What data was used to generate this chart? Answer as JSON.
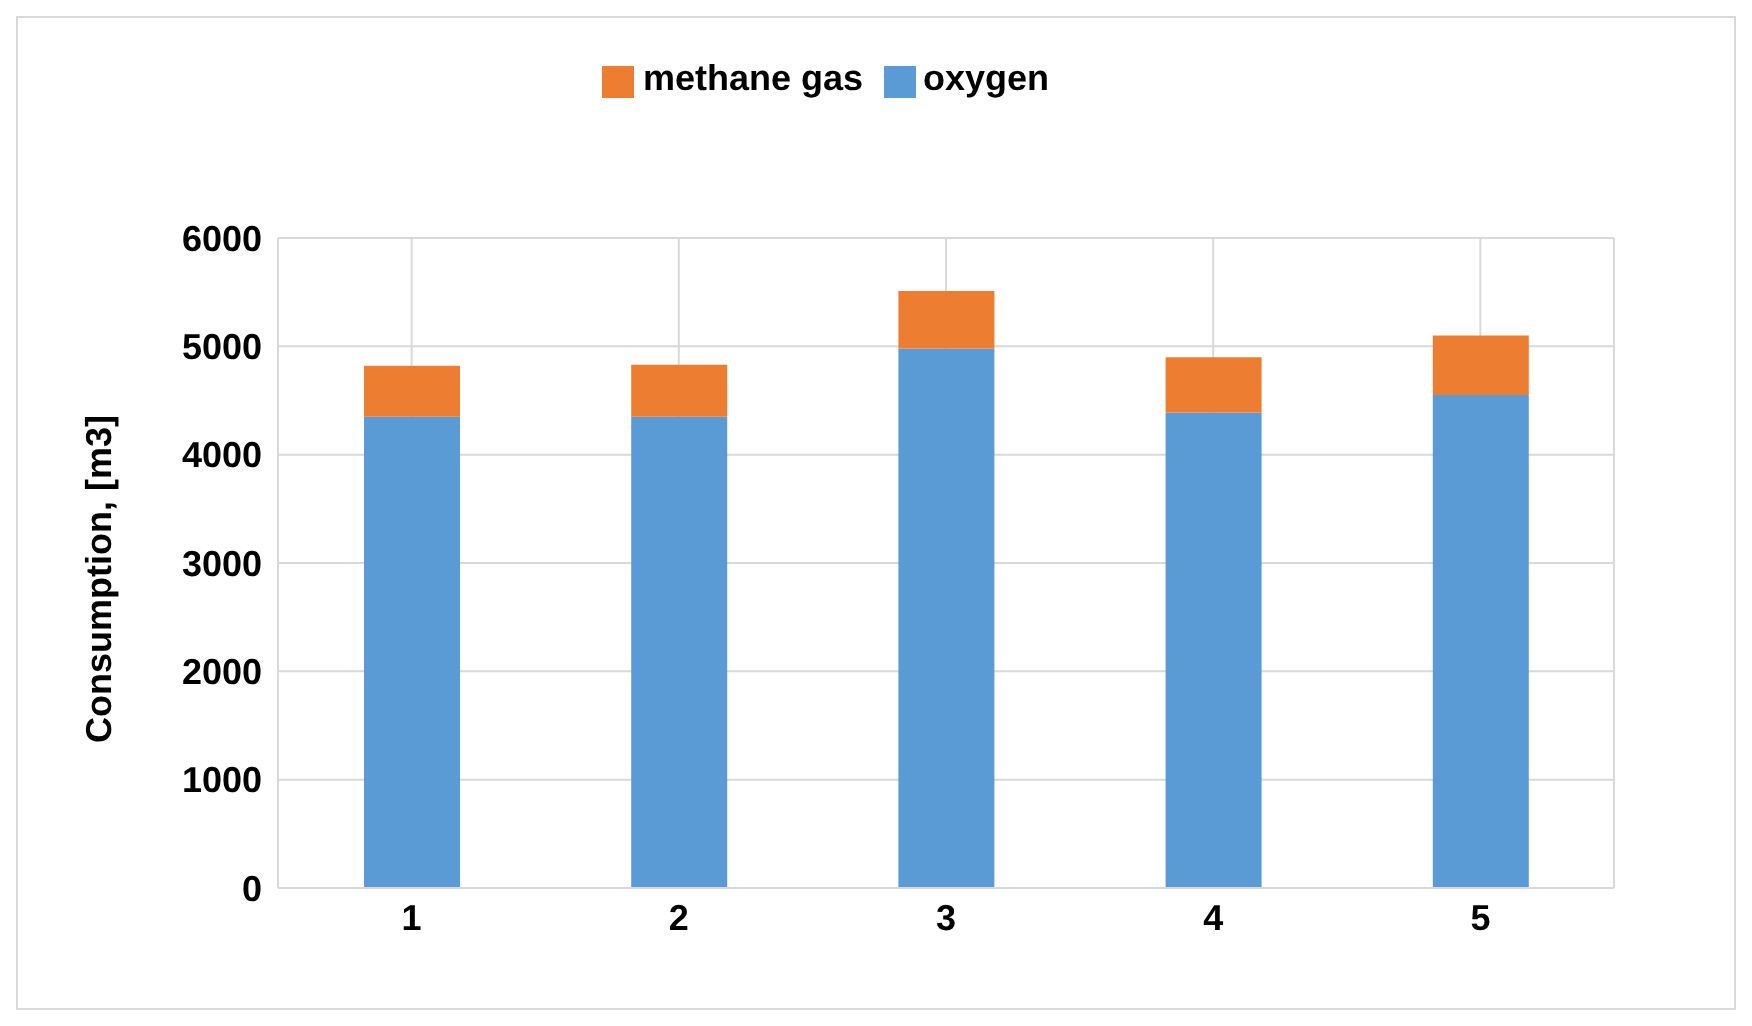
{
  "chart_data": {
    "type": "bar",
    "stacked": true,
    "categories": [
      "1",
      "2",
      "3",
      "4",
      "5"
    ],
    "series": [
      {
        "name": "oxygen",
        "color": "#5b9bd5",
        "values": [
          4350,
          4350,
          4980,
          4390,
          4550
        ]
      },
      {
        "name": "methane gas",
        "color": "#ed7d31",
        "values": [
          470,
          480,
          530,
          510,
          550
        ]
      }
    ],
    "ylabel": "Consumption, [m3]",
    "ylim": [
      0,
      6000
    ],
    "yticks": [
      0,
      1000,
      2000,
      3000,
      4000,
      5000,
      6000
    ],
    "grid": true,
    "legend": "top"
  }
}
